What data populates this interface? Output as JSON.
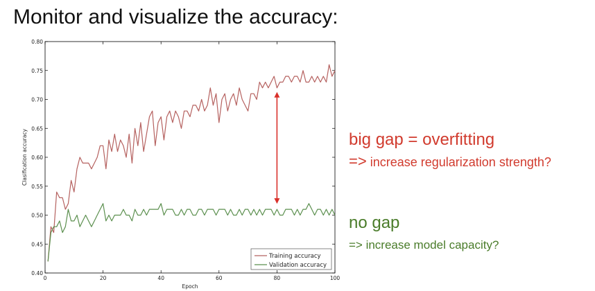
{
  "slide": {
    "title": "Monitor and visualize the accuracy:"
  },
  "annotations": {
    "big_gap": {
      "heading": "big gap = overfitting",
      "arrow": "=>",
      "detail": "increase regularization strength?",
      "color": "#d13b2e"
    },
    "no_gap": {
      "heading": "no gap",
      "detail": "=> increase model capacity?",
      "color": "#4a7c2a"
    },
    "gap_arrow_color": "#d9302a"
  },
  "chart_data": {
    "type": "line",
    "xlabel": "Epoch",
    "ylabel": "Clasification accuracy",
    "xlim": [
      0,
      100
    ],
    "ylim": [
      0.4,
      0.8
    ],
    "xticks": [
      "0",
      "20",
      "40",
      "60",
      "80",
      "100"
    ],
    "yticks": [
      "0.40",
      "0.45",
      "0.50",
      "0.55",
      "0.60",
      "0.65",
      "0.70",
      "0.75",
      "0.80"
    ],
    "grid": false,
    "legend_position": "bottom-right",
    "gap_arrow_x": 80,
    "series": [
      {
        "name": "Training accuracy",
        "color": "#b5615f",
        "x": [
          1,
          2,
          3,
          4,
          5,
          6,
          7,
          8,
          9,
          10,
          11,
          12,
          13,
          14,
          15,
          16,
          17,
          18,
          19,
          20,
          21,
          22,
          23,
          24,
          25,
          26,
          27,
          28,
          29,
          30,
          31,
          32,
          33,
          34,
          35,
          36,
          37,
          38,
          39,
          40,
          41,
          42,
          43,
          44,
          45,
          46,
          47,
          48,
          49,
          50,
          51,
          52,
          53,
          54,
          55,
          56,
          57,
          58,
          59,
          60,
          61,
          62,
          63,
          64,
          65,
          66,
          67,
          68,
          69,
          70,
          71,
          72,
          73,
          74,
          75,
          76,
          77,
          78,
          79,
          80,
          81,
          82,
          83,
          84,
          85,
          86,
          87,
          88,
          89,
          90,
          91,
          92,
          93,
          94,
          95,
          96,
          97,
          98,
          99,
          100
        ],
        "values": [
          0.42,
          0.48,
          0.47,
          0.54,
          0.53,
          0.53,
          0.51,
          0.52,
          0.56,
          0.54,
          0.58,
          0.6,
          0.59,
          0.59,
          0.59,
          0.58,
          0.59,
          0.6,
          0.62,
          0.62,
          0.58,
          0.63,
          0.61,
          0.64,
          0.61,
          0.63,
          0.62,
          0.6,
          0.64,
          0.59,
          0.65,
          0.62,
          0.66,
          0.61,
          0.64,
          0.67,
          0.68,
          0.62,
          0.66,
          0.67,
          0.63,
          0.67,
          0.68,
          0.66,
          0.68,
          0.67,
          0.65,
          0.68,
          0.68,
          0.67,
          0.69,
          0.69,
          0.68,
          0.7,
          0.68,
          0.69,
          0.72,
          0.69,
          0.71,
          0.66,
          0.7,
          0.71,
          0.68,
          0.7,
          0.71,
          0.69,
          0.72,
          0.7,
          0.69,
          0.68,
          0.71,
          0.71,
          0.7,
          0.73,
          0.72,
          0.73,
          0.72,
          0.73,
          0.74,
          0.72,
          0.73,
          0.73,
          0.74,
          0.74,
          0.73,
          0.74,
          0.74,
          0.73,
          0.75,
          0.73,
          0.73,
          0.74,
          0.73,
          0.74,
          0.73,
          0.74,
          0.73,
          0.76,
          0.74,
          0.75
        ]
      },
      {
        "name": "Validation accuracy",
        "color": "#5b8f4e",
        "x": [
          1,
          2,
          3,
          4,
          5,
          6,
          7,
          8,
          9,
          10,
          11,
          12,
          13,
          14,
          15,
          16,
          17,
          18,
          19,
          20,
          21,
          22,
          23,
          24,
          25,
          26,
          27,
          28,
          29,
          30,
          31,
          32,
          33,
          34,
          35,
          36,
          37,
          38,
          39,
          40,
          41,
          42,
          43,
          44,
          45,
          46,
          47,
          48,
          49,
          50,
          51,
          52,
          53,
          54,
          55,
          56,
          57,
          58,
          59,
          60,
          61,
          62,
          63,
          64,
          65,
          66,
          67,
          68,
          69,
          70,
          71,
          72,
          73,
          74,
          75,
          76,
          77,
          78,
          79,
          80,
          81,
          82,
          83,
          84,
          85,
          86,
          87,
          88,
          89,
          90,
          91,
          92,
          93,
          94,
          95,
          96,
          97,
          98,
          99,
          100
        ],
        "values": [
          0.42,
          0.47,
          0.48,
          0.48,
          0.49,
          0.47,
          0.48,
          0.51,
          0.49,
          0.49,
          0.5,
          0.48,
          0.49,
          0.5,
          0.49,
          0.48,
          0.49,
          0.5,
          0.51,
          0.52,
          0.49,
          0.5,
          0.49,
          0.5,
          0.5,
          0.5,
          0.51,
          0.5,
          0.5,
          0.49,
          0.51,
          0.5,
          0.5,
          0.51,
          0.5,
          0.51,
          0.51,
          0.51,
          0.51,
          0.52,
          0.5,
          0.51,
          0.51,
          0.51,
          0.5,
          0.5,
          0.51,
          0.5,
          0.51,
          0.51,
          0.5,
          0.5,
          0.51,
          0.51,
          0.5,
          0.51,
          0.51,
          0.51,
          0.5,
          0.51,
          0.51,
          0.51,
          0.5,
          0.51,
          0.5,
          0.5,
          0.51,
          0.5,
          0.51,
          0.51,
          0.5,
          0.51,
          0.5,
          0.51,
          0.5,
          0.51,
          0.51,
          0.51,
          0.5,
          0.51,
          0.5,
          0.5,
          0.51,
          0.51,
          0.51,
          0.5,
          0.51,
          0.5,
          0.51,
          0.51,
          0.52,
          0.51,
          0.5,
          0.51,
          0.51,
          0.5,
          0.51,
          0.5,
          0.51,
          0.5
        ]
      }
    ]
  }
}
